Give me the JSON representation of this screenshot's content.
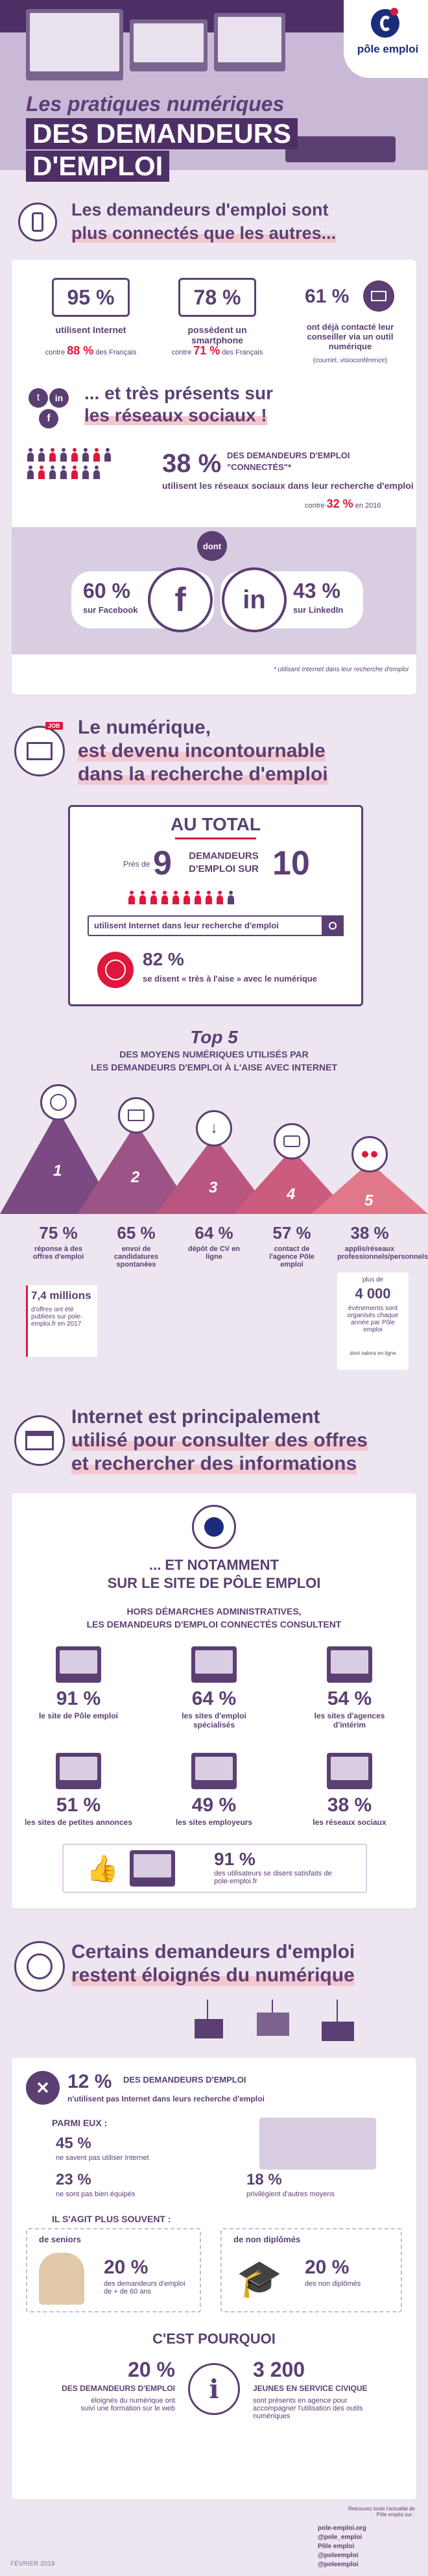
{
  "header": {
    "brand": "pôle emploi",
    "title_line1": "Les pratiques numériques",
    "title_line2": "DES DEMANDEURS",
    "title_line3": "D'EMPLOI"
  },
  "s1": {
    "title_line1": "Les demandeurs d'emploi sont",
    "title_line2": "plus connectés que les autres...",
    "stat1_pct": "95 %",
    "stat1_label": "utilisent Internet",
    "stat1_compare_pre": "contre",
    "stat1_compare_val": "88 %",
    "stat1_compare_post": "des Français",
    "stat2_pct": "78 %",
    "stat2_label": "possèdent un smartphone",
    "stat2_compare_pre": "contre",
    "stat2_compare_val": "71 %",
    "stat2_compare_post": "des Français",
    "stat3_pct": "61 %",
    "stat3_label": "ont déjà contacté leur conseiller via un outil numérique",
    "stat3_note": "(courriel, visioconférence)",
    "social_title_line1": "... et très présents sur",
    "social_title_line2": "les réseaux sociaux !",
    "social_pct": "38 %",
    "social_label1": "DES DEMANDEURS D'EMPLOI",
    "social_label2": "\"CONNECTÉS\"*",
    "social_label3": "utilisent les réseaux sociaux dans leur recherche d'emploi",
    "social_compare_pre": "contre",
    "social_compare_val": "32 %",
    "social_compare_post": "en 2016",
    "dont": "dont",
    "fb_pct": "60 %",
    "fb_label": "sur Facebook",
    "li_pct": "43 %",
    "li_label": "sur LinkedIn",
    "footnote": "* utilisant Internet dans leur recherche d'emploi"
  },
  "s2": {
    "title_line1": "Le numérique,",
    "title_line2": "est devenu incontournable",
    "title_line3": "dans la recherche d'emploi",
    "job_tag": "JOB",
    "total_title": "AU TOTAL",
    "pres_de": "Près de",
    "nine": "9",
    "demandeurs": "DEMANDEURS",
    "demploi_sur": "D'EMPLOI SUR",
    "ten": "10",
    "search_text": "utilisent Internet dans leur recherche d'emploi",
    "pct82": "82 %",
    "pct82_label": "se disent « très à l'aise » avec le numérique",
    "top5_title": "Top 5",
    "top5_sub1": "DES MOYENS NUMÉRIQUES UTILISÉS PAR",
    "top5_sub2": "LES DEMANDEURS D'EMPLOI À L'AISE AVEC INTERNET",
    "top5": [
      {
        "rank": "1",
        "pct": "75 %",
        "label": "réponse à des offres d'emploi"
      },
      {
        "rank": "2",
        "pct": "65 %",
        "label": "envoi de candidatures spontanées"
      },
      {
        "rank": "3",
        "pct": "64 %",
        "label": "dépôt de CV en ligne"
      },
      {
        "rank": "4",
        "pct": "57 %",
        "label": "contact de l'agence Pôle emploi"
      },
      {
        "rank": "5",
        "pct": "38 %",
        "label": "applis/réseaux professionnels/personnels"
      }
    ],
    "millions_val": "7,4 millions",
    "millions_label": "d'offres ont été publiées sur pole-emploi.fr en 2017",
    "events_pre": "plus de",
    "events_val": "4 000",
    "events_label": "événements sont organisés chaque année par Pôle emploi",
    "events_note": "dont salons en ligne"
  },
  "s3": {
    "title_line1": "Internet est principalement",
    "title_line2": "utilisé pour consulter des offres",
    "title_line3": "et rechercher des informations",
    "notamment_line1": "... ET NOTAMMENT",
    "notamment_line2": "SUR LE SITE DE PÔLE EMPLOI",
    "hors_line1": "HORS DÉMARCHES ADMINISTRATIVES,",
    "hors_line2": "LES DEMANDEURS D'EMPLOI CONNECTÉS CONSULTENT",
    "items": [
      {
        "pct": "91 %",
        "label": "le site de Pôle emploi"
      },
      {
        "pct": "64 %",
        "label": "les sites d'emploi spécialisés"
      },
      {
        "pct": "54 %",
        "label": "les sites d'agences d'intérim"
      },
      {
        "pct": "51 %",
        "label": "les sites de petites annonces"
      },
      {
        "pct": "49 %",
        "label": "les sites employeurs"
      },
      {
        "pct": "38 %",
        "label": "les réseaux sociaux"
      }
    ],
    "satisf_pct": "91 %",
    "satisf_label": "des utilisateurs se disent satisfaits de pole-emploi.fr"
  },
  "s4": {
    "title_line1": "Certains demandeurs d'emploi",
    "title_line2": "restent éloignés du numérique",
    "pct12": "12 %",
    "pct12_label1": "DES DEMANDEURS D'EMPLOI",
    "pct12_label2": "n'utilisent pas Internet dans leurs recherche d'emploi",
    "parmi": "PARMI EUX :",
    "p45": "45 %",
    "p45_label": "ne savent pas utiliser Internet",
    "p23": "23 %",
    "p23_label": "ne sont pas bien équipés",
    "p18": "18 %",
    "p18_label": "privilégient d'autres moyens",
    "souvent": "IL S'AGIT PLUS SOUVENT :",
    "seniors_head": "de seniors",
    "seniors_pct": "20 %",
    "seniors_label": "des demandeurs d'emploi de + de 60 ans",
    "nondip_head": "de non diplômés",
    "nondip_pct": "20 %",
    "nondip_label": "des non diplômés",
    "cest_pourquoi": "C'EST POURQUOI",
    "cp1_pct": "20 %",
    "cp1_label1": "DES DEMANDEURS D'EMPLOI",
    "cp1_label2": "éloignés du numérique ont suivi une formation sur le web",
    "cp2_val": "3 200",
    "cp2_label1": "JEUNES EN SERVICE CIVIQUE",
    "cp2_label2": "sont présents en agence pour accompagner l'utilisation des outils numériques"
  },
  "footer": {
    "date": "FÉVRIER 2019",
    "retrouvez": "Retrouvez toute l'actualité de Pôle emploi sur :",
    "links": [
      "pole-emploi.org",
      "@pole_emploi",
      "Pôle emploi",
      "@poleemploi",
      "@poleemploi"
    ]
  },
  "colors": {
    "purple": "#5b3f73",
    "red": "#e0173c",
    "lavender": "#d9cde2",
    "bg": "#ede6f0"
  }
}
